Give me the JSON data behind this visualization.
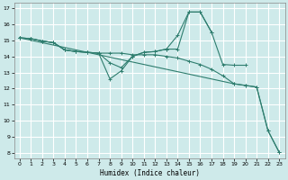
{
  "xlabel": "Humidex (Indice chaleur)",
  "bg_color": "#ceeaea",
  "grid_color": "#ffffff",
  "line_color": "#2e7d6e",
  "xlim": [
    -0.5,
    23.5
  ],
  "ylim": [
    7.7,
    17.3
  ],
  "xticks": [
    0,
    1,
    2,
    3,
    4,
    5,
    6,
    7,
    8,
    9,
    10,
    11,
    12,
    13,
    14,
    15,
    16,
    17,
    18,
    19,
    20,
    21,
    22,
    23
  ],
  "yticks": [
    8,
    9,
    10,
    11,
    12,
    13,
    14,
    15,
    16,
    17
  ],
  "series": [
    {
      "x": [
        0,
        1,
        2,
        3,
        4,
        5,
        6,
        7,
        8,
        9,
        10,
        11,
        12,
        13,
        14,
        15,
        16,
        17
      ],
      "y": [
        15.15,
        15.1,
        14.95,
        14.85,
        14.4,
        14.3,
        14.25,
        14.2,
        12.6,
        13.1,
        14.0,
        14.25,
        14.3,
        14.45,
        15.3,
        16.75,
        16.75,
        15.5
      ]
    },
    {
      "x": [
        0,
        1,
        2,
        3,
        4,
        5,
        6,
        7,
        8,
        9,
        10,
        11,
        12,
        13,
        14,
        15,
        16,
        17,
        18,
        19,
        20
      ],
      "y": [
        15.15,
        15.1,
        14.95,
        14.85,
        14.4,
        14.3,
        14.25,
        14.2,
        13.6,
        13.3,
        14.0,
        14.25,
        14.3,
        14.45,
        14.45,
        16.75,
        16.75,
        15.5,
        13.5,
        13.45,
        13.45
      ]
    },
    {
      "x": [
        0,
        1,
        2,
        3,
        4,
        5,
        6,
        7,
        8,
        9,
        10,
        11,
        12,
        13,
        14,
        15,
        16,
        17,
        18,
        19,
        20,
        21,
        22,
        23
      ],
      "y": [
        15.15,
        15.1,
        14.95,
        14.85,
        14.4,
        14.3,
        14.25,
        14.2,
        14.2,
        14.2,
        14.1,
        14.1,
        14.1,
        14.0,
        13.9,
        13.7,
        13.5,
        13.2,
        12.8,
        12.3,
        12.2,
        12.1,
        9.4,
        8.05
      ]
    },
    {
      "x": [
        0,
        19,
        20,
        21,
        22,
        23
      ],
      "y": [
        15.15,
        12.3,
        12.2,
        12.1,
        9.4,
        8.05
      ]
    }
  ]
}
